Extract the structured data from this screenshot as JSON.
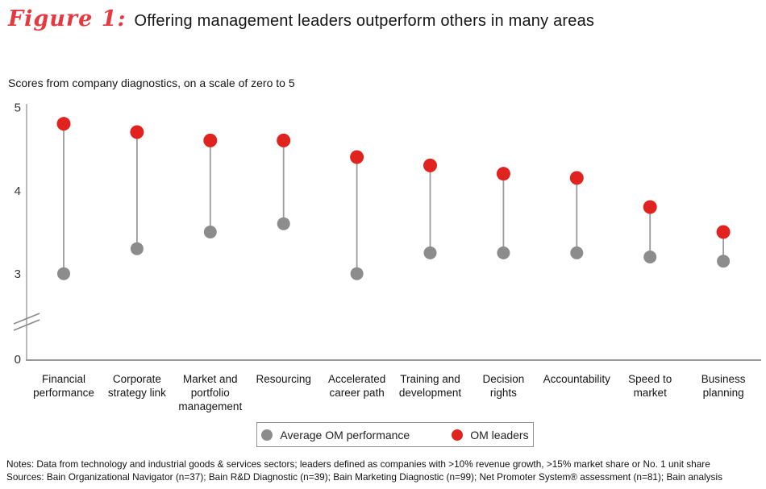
{
  "header": {
    "figure_label": "Figure 1:",
    "title": "Offering management leaders outperform others in many areas"
  },
  "chart_data": {
    "type": "dumbbell-dot",
    "title": "Offering management leaders outperform others in many areas",
    "subtitle": "Scores from company diagnostics, on a scale of zero to 5",
    "categories": [
      "Financial\nperformance",
      "Corporate\nstrategy link",
      "Market and\nportfolio\nmanagement",
      "Resourcing",
      "Accelerated\ncareer path",
      "Training and\ndevelopment",
      "Decision\nrights",
      "Accountability",
      "Speed to\nmarket",
      "Business\nplanning"
    ],
    "series": [
      {
        "name": "Average OM performance",
        "color": "#8c8c8c",
        "values": [
          3.0,
          3.3,
          3.5,
          3.6,
          3.0,
          3.25,
          3.25,
          3.25,
          3.2,
          3.15
        ]
      },
      {
        "name": "OM leaders",
        "color": "#e0231e",
        "values": [
          4.8,
          4.7,
          4.6,
          4.6,
          4.4,
          4.3,
          4.2,
          4.15,
          3.8,
          3.5
        ]
      }
    ],
    "ylim": [
      0,
      5
    ],
    "yticks": [
      5,
      4,
      3,
      0
    ],
    "axis_break": true,
    "grid": false,
    "legend_position": "bottom"
  },
  "notes": {
    "line1": "Notes: Data from technology and industrial goods & services sectors; leaders defined as companies with >10% revenue growth, >15% market share or No. 1 unit share",
    "line2": "Sources: Bain Organizational Navigator (n=37); Bain R&D Diagnostic (n=39); Bain Marketing Diagnostic (n=99); Net Promoter System® assessment (n=81); Bain analysis"
  },
  "colors": {
    "accent_red": "#e0231e",
    "dot_gray": "#8c8c8c",
    "figure_label_red": "#e5383f",
    "axis_gray": "#b9b9b9",
    "connector_gray": "#9b9b9b"
  }
}
